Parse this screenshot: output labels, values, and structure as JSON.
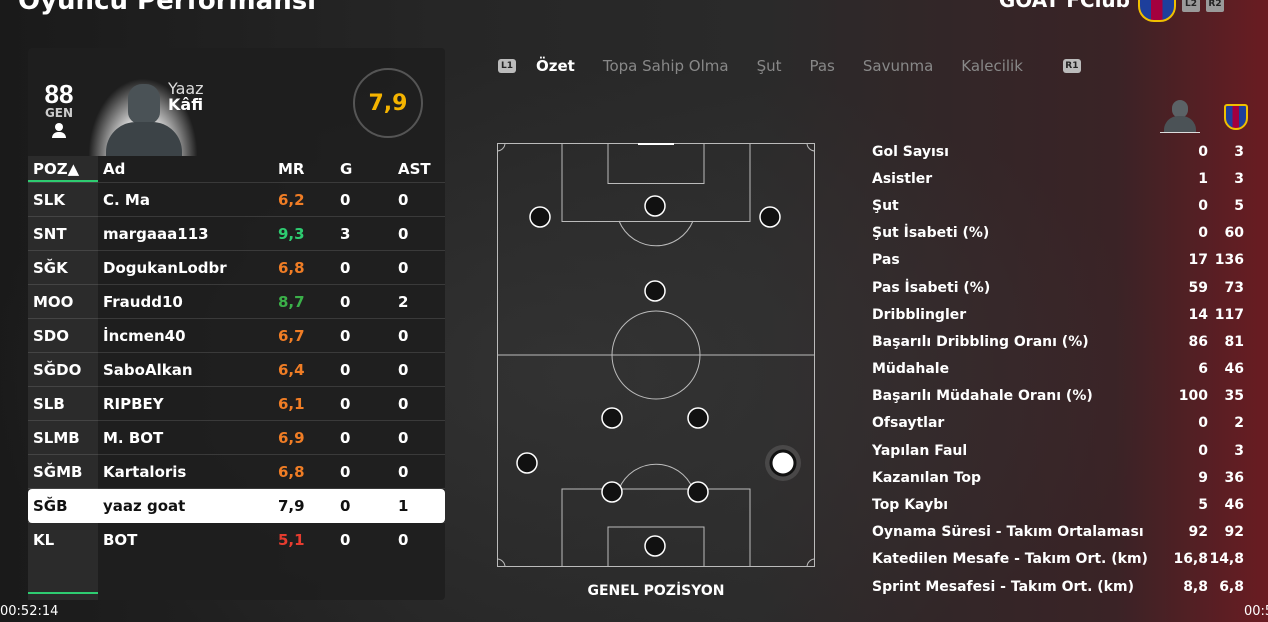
{
  "header": {
    "title": "Oyuncu Performansı",
    "club": "GOAT FClub",
    "l2": "L2",
    "r2": "R2"
  },
  "player": {
    "overall": "88",
    "overall_label": "GEN",
    "first_name": "Yaaz",
    "last_name": "Kâfi",
    "rating": "7,9"
  },
  "table": {
    "headers": [
      "POZ▲",
      "Ad",
      "MR",
      "G",
      "AST"
    ],
    "rows": [
      {
        "pos": "SLK",
        "name": "C. Ma",
        "mr": "6,2",
        "g": "0",
        "ast": "0",
        "mr_color": "orange"
      },
      {
        "pos": "SNT",
        "name": "margaaa113",
        "mr": "9,3",
        "g": "3",
        "ast": "0",
        "mr_color": "green"
      },
      {
        "pos": "SĞK",
        "name": "DogukanLodbr",
        "mr": "6,8",
        "g": "0",
        "ast": "0",
        "mr_color": "orange"
      },
      {
        "pos": "MOO",
        "name": "Fraudd10",
        "mr": "8,7",
        "g": "0",
        "ast": "2",
        "mr_color": "green2"
      },
      {
        "pos": "SDO",
        "name": "İncmen40",
        "mr": "6,7",
        "g": "0",
        "ast": "0",
        "mr_color": "orange"
      },
      {
        "pos": "SĞDO",
        "name": "SaboAlkan",
        "mr": "6,4",
        "g": "0",
        "ast": "0",
        "mr_color": "orange"
      },
      {
        "pos": "SLB",
        "name": "RIPBEY",
        "mr": "6,1",
        "g": "0",
        "ast": "0",
        "mr_color": "orange"
      },
      {
        "pos": "SLMB",
        "name": "M. BOT",
        "mr": "6,9",
        "g": "0",
        "ast": "0",
        "mr_color": "orange"
      },
      {
        "pos": "SĞMB",
        "name": "Kartaloris",
        "mr": "6,8",
        "g": "0",
        "ast": "0",
        "mr_color": "orange"
      },
      {
        "pos": "SĞB",
        "name": "yaaz goat",
        "mr": "7,9",
        "g": "0",
        "ast": "1",
        "mr_color": "dark",
        "selected": true
      },
      {
        "pos": "KL",
        "name": "BOT",
        "mr": "5,1",
        "g": "0",
        "ast": "0",
        "mr_color": "red"
      }
    ]
  },
  "tabs": {
    "l1": "L1",
    "r1": "R1",
    "items": [
      "Özet",
      "Topa Sahip Olma",
      "Şut",
      "Pas",
      "Savunma",
      "Kalecilik"
    ],
    "active": "Özet"
  },
  "pitch": {
    "label": "GENEL POZİSYON"
  },
  "stats": [
    {
      "label": "Gol Sayısı",
      "player": "0",
      "team": "3"
    },
    {
      "label": "Asistler",
      "player": "1",
      "team": "3"
    },
    {
      "label": "Şut",
      "player": "0",
      "team": "5"
    },
    {
      "label": "Şut İsabeti (%)",
      "player": "0",
      "team": "60"
    },
    {
      "label": "Pas",
      "player": "17",
      "team": "136"
    },
    {
      "label": "Pas İsabeti (%)",
      "player": "59",
      "team": "73"
    },
    {
      "label": "Dribblingler",
      "player": "14",
      "team": "117"
    },
    {
      "label": "Başarılı Dribbling Oranı (%)",
      "player": "86",
      "team": "81"
    },
    {
      "label": "Müdahale",
      "player": "6",
      "team": "46"
    },
    {
      "label": "Başarılı Müdahale Oranı (%)",
      "player": "100",
      "team": "35"
    },
    {
      "label": "Ofsaytlar",
      "player": "0",
      "team": "2"
    },
    {
      "label": "Yapılan Faul",
      "player": "0",
      "team": "3"
    },
    {
      "label": "Kazanılan Top",
      "player": "9",
      "team": "36"
    },
    {
      "label": "Top Kaybı",
      "player": "5",
      "team": "46"
    },
    {
      "label": "Oynama Süresi - Takım Ortalaması",
      "player": "92",
      "team": "92"
    },
    {
      "label": "Katedilen Mesafe - Takım Ort. (km)",
      "player": "16,8",
      "team": "14,8"
    },
    {
      "label": "Sprint Mesafesi - Takım Ort. (km)",
      "player": "8,8",
      "team": "6,8"
    }
  ],
  "time": {
    "left": "00:52:14",
    "right": "00:5"
  },
  "colors": {
    "accent_green": "#2ecc71",
    "rating_gold": "#f5b400",
    "orange": "#f07d25",
    "red": "#e63c2f"
  }
}
